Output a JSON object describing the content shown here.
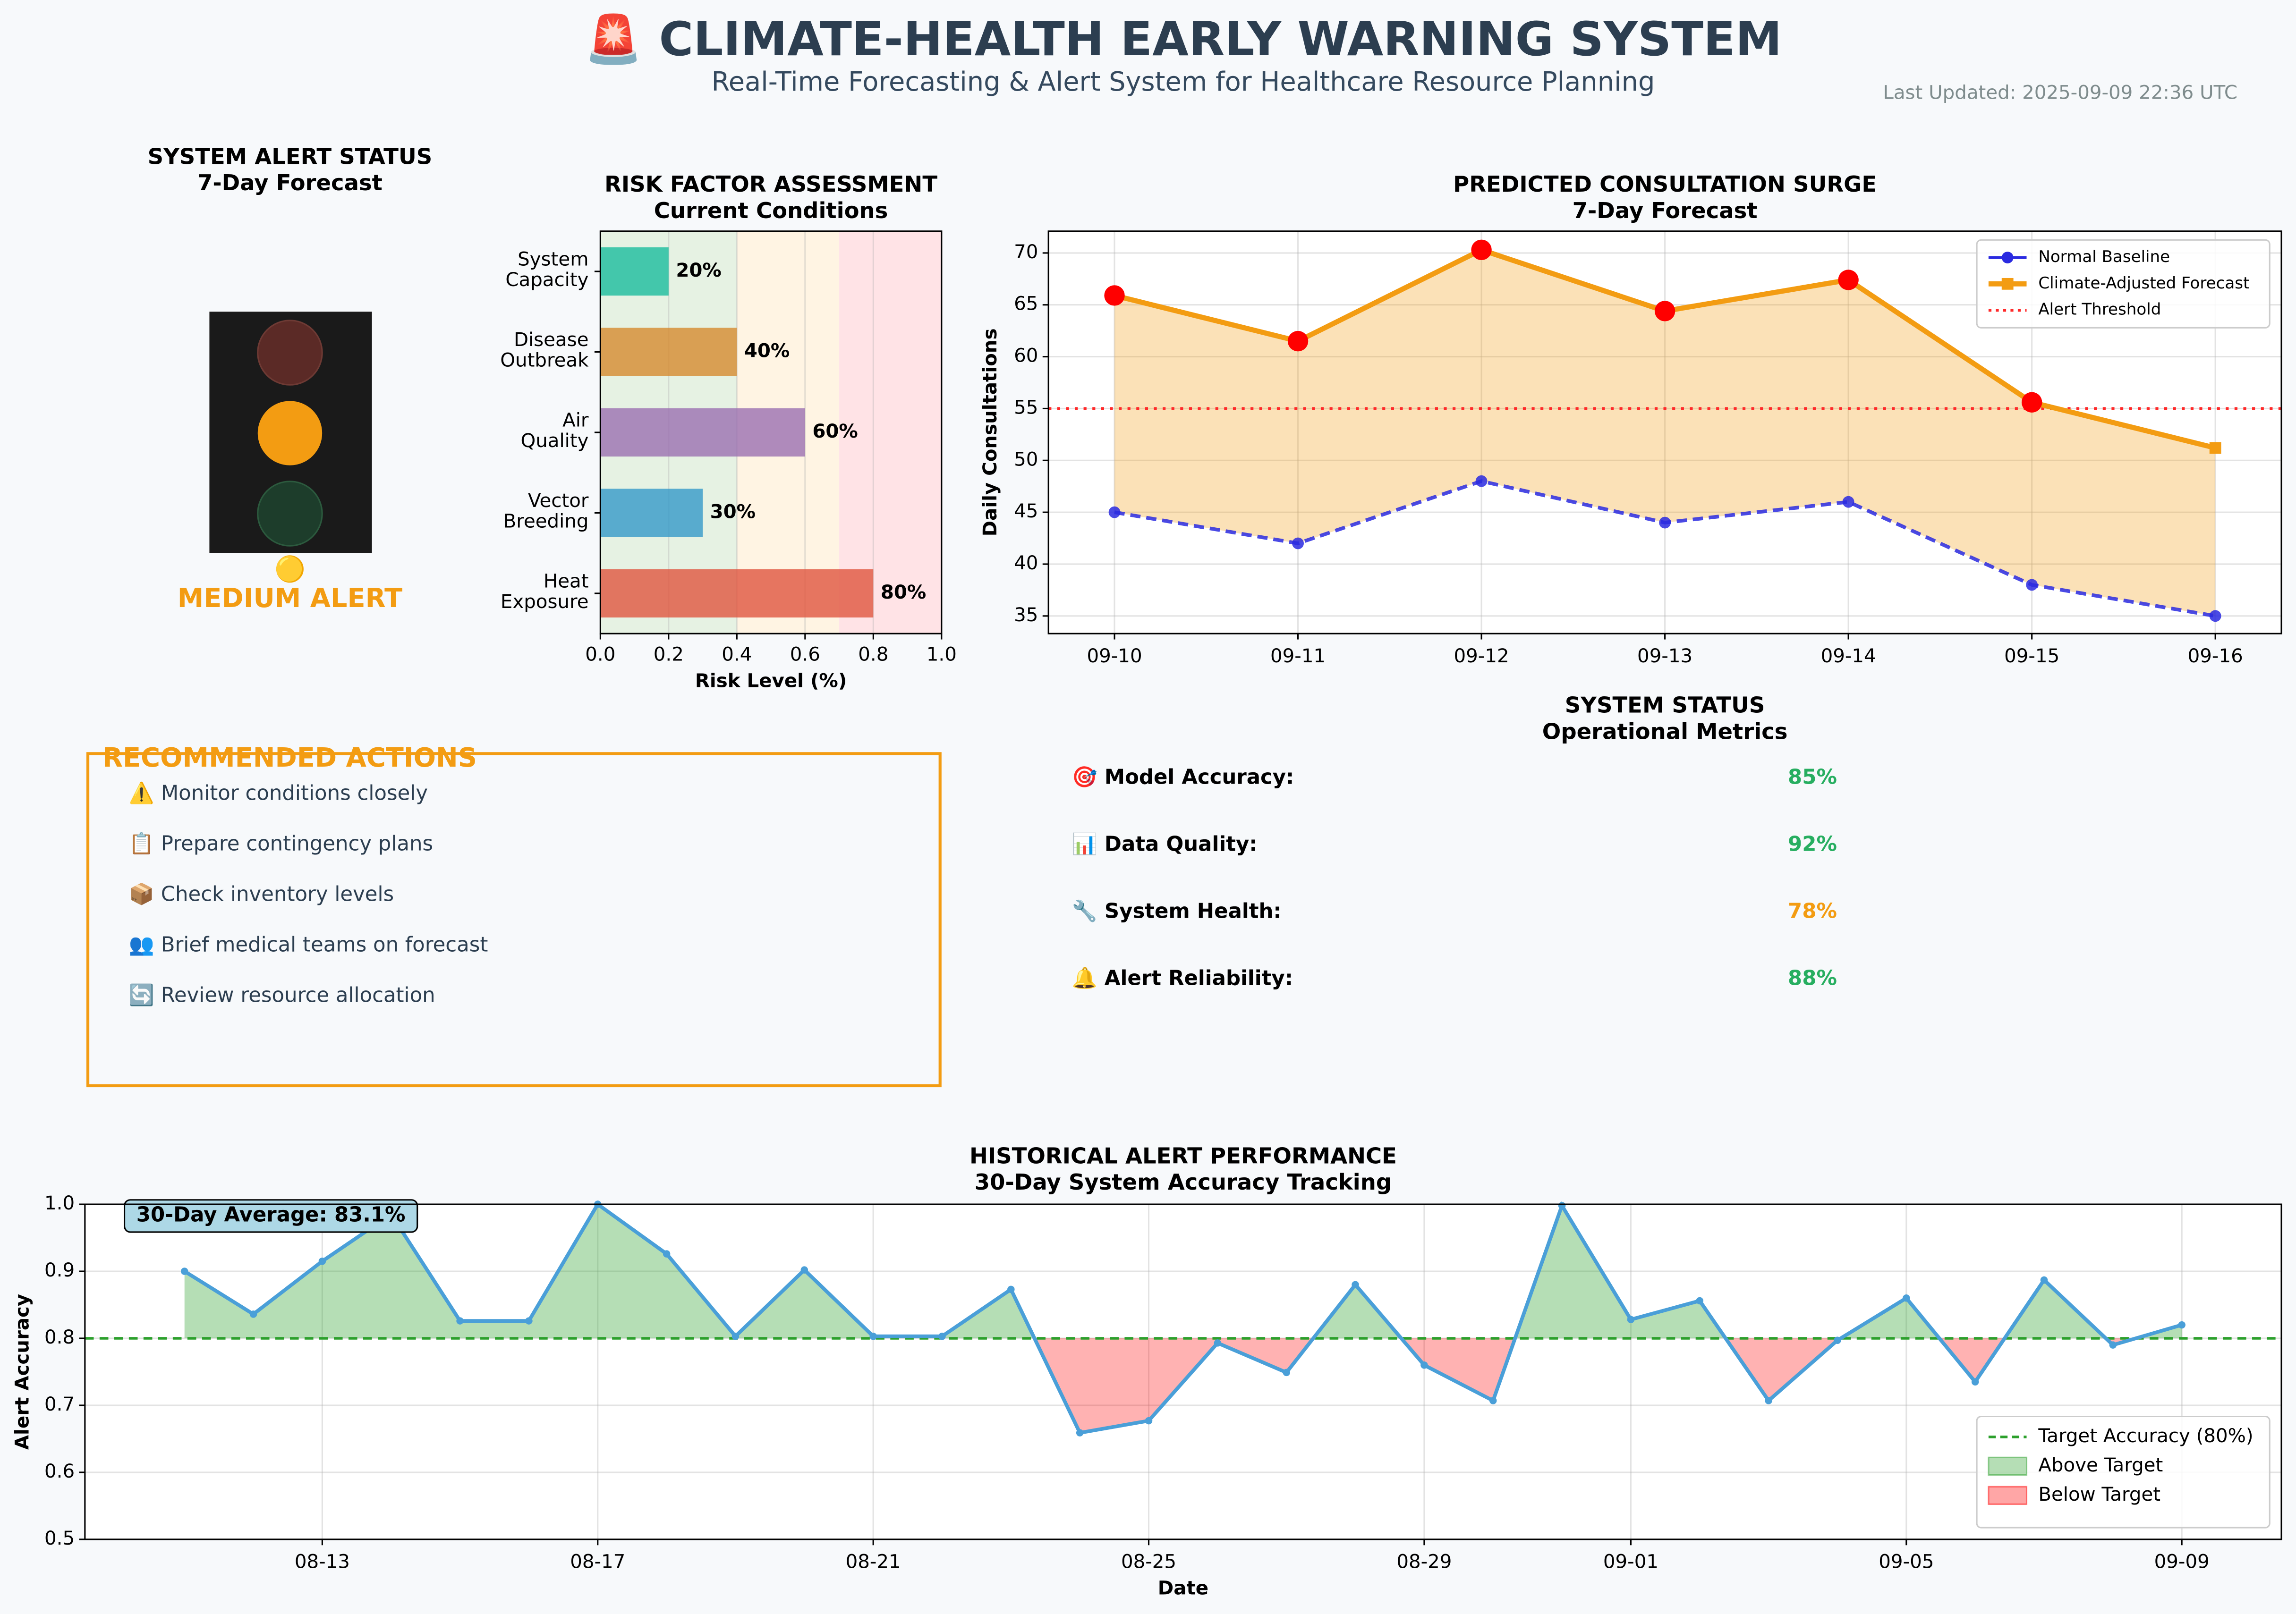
{
  "header": {
    "title": "🚨 CLIMATE-HEALTH EARLY WARNING SYSTEM",
    "subtitle": "Real-Time Forecasting & Alert System for Healthcare Resource Planning",
    "updated": "Last Updated: 2025-09-09 22:36 UTC"
  },
  "alert_status": {
    "title": "SYSTEM ALERT STATUS",
    "subtitle": "7-Day Forecast",
    "icon": "🟡",
    "level": "MEDIUM ALERT"
  },
  "actions": {
    "title": "RECOMMENDED ACTIONS",
    "items": [
      "⚠️ Monitor conditions closely",
      "📋 Prepare contingency plans",
      "📦 Check inventory levels",
      "👥 Brief medical teams on forecast",
      "🔄 Review resource allocation"
    ]
  },
  "system_status": {
    "title": "SYSTEM STATUS",
    "subtitle": "Operational Metrics",
    "metrics": [
      {
        "label": "🎯 Model Accuracy:",
        "value": "85%",
        "color": "#27ae60"
      },
      {
        "label": "📊 Data Quality:",
        "value": "92%",
        "color": "#27ae60"
      },
      {
        "label": "🔧 System Health:",
        "value": "78%",
        "color": "#f39c12"
      },
      {
        "label": "🔔 Alert Reliability:",
        "value": "88%",
        "color": "#27ae60"
      }
    ]
  },
  "chart_data": [
    {
      "type": "barh",
      "title": "RISK FACTOR ASSESSMENT",
      "subtitle": "Current Conditions",
      "categories": [
        "System\nCapacity",
        "Disease\nOutbreak",
        "Air\nQuality",
        "Vector\nBreeding",
        "Heat\nExposure"
      ],
      "values": [
        0.2,
        0.4,
        0.6,
        0.3,
        0.8
      ],
      "value_labels": [
        "20%",
        "40%",
        "60%",
        "30%",
        "80%"
      ],
      "colors": [
        "#1abc9c",
        "#d68a2e",
        "#9b6fb0",
        "#3498c8",
        "#e0553f"
      ],
      "zones": [
        {
          "from": 0,
          "to": 0.4,
          "color": "#e6f2e3"
        },
        {
          "from": 0.4,
          "to": 0.7,
          "color": "#fff4e3"
        },
        {
          "from": 0.7,
          "to": 1,
          "color": "#ffe3e6"
        }
      ],
      "xlabel": "Risk Level (%)",
      "xlim": [
        0,
        1
      ],
      "xticks": [
        {
          "value": 0,
          "label": "0.0"
        },
        0.2,
        0.4,
        0.6,
        0.8,
        {
          "value": 1,
          "label": "1.0"
        }
      ],
      "grid": true
    },
    {
      "type": "line",
      "title": "PREDICTED CONSULTATION SURGE",
      "subtitle": "7-Day Forecast",
      "categories": [
        "09-10",
        "09-11",
        "09-12",
        "09-13",
        "09-14",
        "09-15",
        "09-16"
      ],
      "series": [
        {
          "name": "Normal Baseline",
          "color": "#2a2ae0",
          "values": [
            45,
            42,
            48,
            44,
            46,
            38,
            35
          ],
          "style": "dashed",
          "marker": "circle"
        },
        {
          "name": "Climate-Adjusted Forecast",
          "color": "#f39c12",
          "values": [
            65.9,
            61.5,
            70.3,
            64.4,
            67.4,
            55.6,
            51.2
          ],
          "style": "solid",
          "marker": "square"
        }
      ],
      "threshold": {
        "name": "Alert Threshold",
        "value": 55,
        "color": "#ff2a2a"
      },
      "highlight_color": "#ff0000",
      "fill_between": true,
      "ylabel": "Daily Consultations",
      "ylim": [
        33.3,
        72.1
      ],
      "yticks": [
        35,
        40,
        45,
        50,
        55,
        60,
        65,
        70
      ],
      "grid": true,
      "legend": "upper right"
    },
    {
      "type": "line",
      "title": "HISTORICAL ALERT PERFORMANCE",
      "subtitle": "30-Day System Accuracy Tracking",
      "categories": [
        null,
        null,
        "08-13",
        null,
        null,
        null,
        "08-17",
        null,
        null,
        null,
        "08-21",
        null,
        null,
        null,
        "08-25",
        null,
        null,
        null,
        "08-29",
        null,
        null,
        "09-01",
        null,
        null,
        null,
        "09-05",
        null,
        null,
        null,
        "09-09"
      ],
      "values": [
        0.9,
        0.836,
        0.915,
        0.985,
        0.826,
        0.826,
        1.0,
        0.926,
        0.803,
        0.902,
        0.803,
        0.803,
        0.873,
        0.659,
        0.677,
        0.793,
        0.749,
        0.88,
        0.76,
        0.707,
        0.998,
        0.828,
        0.856,
        0.707,
        0.797,
        0.86,
        0.735,
        0.887,
        0.79,
        0.82
      ],
      "color": "#4a9fd8",
      "target": {
        "name": "Target Accuracy (80%)",
        "value": 0.8,
        "color": "#2ca02c"
      },
      "fills": [
        {
          "name": "Above Target",
          "color": "#2ca02c"
        },
        {
          "name": "Below Target",
          "color": "#ff0000"
        }
      ],
      "annotation": "30-Day Average: 83.1%",
      "xlabel": "Date",
      "ylabel": "Alert Accuracy",
      "ylim": [
        0.5,
        1
      ],
      "yticks": [
        0.5,
        0.6,
        0.7,
        0.8,
        0.9,
        {
          "value": 1,
          "label": "1.0"
        }
      ],
      "grid": true,
      "legend": "lower right"
    }
  ]
}
